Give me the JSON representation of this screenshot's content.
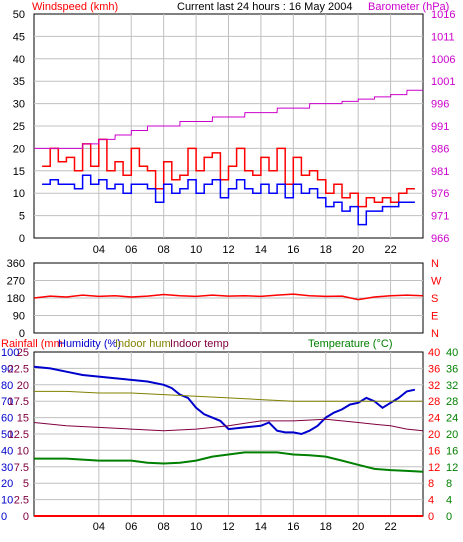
{
  "colors": {
    "wind_gust": "#ff0000",
    "wind_avg": "#0000ff",
    "barometer": "#cc00cc",
    "wind_dir": "#ff0000",
    "rainfall": "#ff0000",
    "humidity": "#0000cc",
    "indoor_hum": "#808000",
    "indoor_temp": "#800040",
    "temperature": "#008000",
    "grid": "#c0c0c0",
    "axis": "#000000"
  },
  "chart_data": [
    {
      "type": "line",
      "title": "Current last 24 hours : 16 May 2004",
      "ylabel": "Windspeed (kmh)",
      "y2label": "Barometer (hPa)",
      "ylim": [
        0,
        50
      ],
      "y_ticks": [
        "0",
        "5",
        "10",
        "15",
        "20",
        "25",
        "30",
        "35",
        "40",
        "45",
        "50"
      ],
      "y2lim": [
        966,
        1016
      ],
      "y2_ticks": [
        "966",
        "971",
        "976",
        "981",
        "986",
        "991",
        "996",
        "1001",
        "1006",
        "1011",
        "1016"
      ],
      "x_ticks": [
        "04",
        "06",
        "08",
        "10",
        "12",
        "14",
        "16",
        "18",
        "20",
        "22"
      ],
      "x_tick_hours": [
        4,
        6,
        8,
        10,
        12,
        14,
        16,
        18,
        20,
        22
      ],
      "xlim": [
        0,
        24
      ],
      "grid": true,
      "series": [
        {
          "key": "gust",
          "axis": "left",
          "hours": [
            0.5,
            1,
            1.5,
            2,
            2.5,
            3,
            3.5,
            4,
            4.5,
            5,
            5.5,
            6,
            6.5,
            7,
            7.5,
            8,
            8.5,
            9,
            9.5,
            10,
            10.5,
            11,
            11.5,
            12,
            12.5,
            13,
            13.5,
            14,
            14.5,
            15,
            15.5,
            16,
            16.5,
            17,
            17.5,
            18,
            18.5,
            19,
            19.5,
            20,
            20.5,
            21,
            21.5,
            22,
            22.5,
            23,
            23.5
          ],
          "values": [
            16,
            20,
            17,
            18,
            15,
            21,
            16,
            22,
            15,
            17,
            14,
            20,
            16,
            15,
            11,
            17,
            13,
            14,
            20,
            15,
            18,
            19,
            13,
            16,
            20,
            15,
            14,
            18,
            15,
            20,
            12,
            18,
            14,
            15,
            13,
            10,
            12,
            9,
            10,
            7,
            9,
            8,
            9,
            8,
            10,
            11,
            11
          ]
        },
        {
          "key": "avg",
          "axis": "left",
          "hours": [
            0.5,
            1,
            1.5,
            2,
            2.5,
            3,
            3.5,
            4,
            4.5,
            5,
            5.5,
            6,
            6.5,
            7,
            7.5,
            8,
            8.5,
            9,
            9.5,
            10,
            10.5,
            11,
            11.5,
            12,
            12.5,
            13,
            13.5,
            14,
            14.5,
            15,
            15.5,
            16,
            16.5,
            17,
            17.5,
            18,
            18.5,
            19,
            19.5,
            20,
            20.5,
            21,
            21.5,
            22,
            22.5,
            23,
            23.5
          ],
          "values": [
            12,
            13,
            12,
            12,
            11,
            14,
            12,
            13,
            11,
            12,
            10,
            12,
            12,
            11,
            8,
            12,
            10,
            11,
            13,
            10,
            12,
            13,
            9,
            11,
            13,
            11,
            10,
            12,
            10,
            12,
            9,
            12,
            10,
            11,
            9,
            7,
            8,
            6,
            7,
            3,
            6,
            6,
            7,
            7,
            8,
            8,
            8
          ]
        },
        {
          "key": "baro",
          "axis": "right",
          "hours": [
            0,
            3,
            3.01,
            4,
            4.01,
            5,
            5.01,
            6,
            6.01,
            7,
            7.01,
            9,
            9.01,
            11,
            11.01,
            13,
            13.01,
            15,
            15.01,
            17,
            17.01,
            19,
            19.01,
            20,
            20.01,
            21,
            21.01,
            22,
            22.01,
            23,
            23.01,
            24
          ],
          "values": [
            986,
            986,
            987,
            987,
            988,
            988,
            989,
            989,
            990,
            990,
            991,
            991,
            992,
            992,
            993,
            993,
            994,
            994,
            995,
            995,
            996,
            996,
            996.5,
            996.5,
            997,
            997,
            997.5,
            997.5,
            998,
            998,
            999,
            999
          ]
        }
      ]
    },
    {
      "type": "line",
      "ylabel": "",
      "ylim": [
        0,
        360
      ],
      "y_ticks": [
        "0",
        "90",
        "180",
        "270",
        "360"
      ],
      "y2_ticks": [
        "N",
        "E",
        "S",
        "W",
        "N"
      ],
      "xlim": [
        0,
        24
      ],
      "grid": true,
      "series": [
        {
          "key": "dir",
          "hours": [
            0,
            1,
            2,
            3,
            4,
            5,
            6,
            7,
            8,
            9,
            10,
            11,
            12,
            13,
            14,
            15,
            16,
            17,
            18,
            19,
            20,
            21,
            22,
            23,
            24
          ],
          "values": [
            180,
            190,
            185,
            195,
            188,
            192,
            185,
            190,
            198,
            192,
            188,
            195,
            190,
            192,
            188,
            195,
            200,
            192,
            188,
            190,
            172,
            185,
            192,
            195,
            192
          ]
        }
      ]
    },
    {
      "type": "line",
      "legend": [
        "Rainfall (mm",
        "Humidity (%)",
        "Indoor hum",
        "Indoor temp",
        "Temperature (°C)"
      ],
      "ylim": [
        0,
        100
      ],
      "y_ticks": [
        "0",
        "10",
        "20",
        "30",
        "40",
        "50",
        "60",
        "70",
        "80",
        "90",
        "100"
      ],
      "y_ticks_mid": [
        "0",
        "2.5",
        "5",
        "7.5",
        "10",
        "12.5",
        "15",
        "17.5",
        "20",
        "22.5",
        "25"
      ],
      "y2lim": [
        0,
        40
      ],
      "y2_ticks_inner": [
        "0",
        "4",
        "8",
        "12",
        "16",
        "20",
        "24",
        "28",
        "32",
        "36",
        "40"
      ],
      "y2_ticks_outer": [
        "0",
        "4",
        "8",
        "12",
        "16",
        "20",
        "24",
        "28",
        "32",
        "36",
        "40"
      ],
      "xlim": [
        0,
        24
      ],
      "grid": true,
      "series": [
        {
          "key": "humidity",
          "axis": "left",
          "hours": [
            0,
            1,
            2,
            3,
            4,
            5,
            6,
            7,
            8,
            8.5,
            9,
            9.5,
            10,
            10.5,
            11,
            11.5,
            12,
            13,
            14,
            14.5,
            15,
            15.5,
            16,
            16.5,
            17,
            17.5,
            18,
            18.5,
            19,
            19.5,
            20,
            20.5,
            21,
            21.5,
            22,
            22.5,
            23,
            23.5
          ],
          "values": [
            91,
            90,
            88,
            86,
            85,
            84,
            83,
            82,
            80,
            78,
            74,
            72,
            66,
            62,
            60,
            58,
            53,
            54,
            55,
            57,
            52,
            51,
            51,
            50,
            52,
            55,
            60,
            63,
            65,
            68,
            69,
            72,
            70,
            66,
            69,
            72,
            76,
            77
          ]
        },
        {
          "key": "indoor_hum",
          "axis": "left",
          "hours": [
            0,
            2,
            4,
            6,
            8,
            10,
            12,
            14,
            16,
            18,
            20,
            22,
            24
          ],
          "values": [
            76,
            76,
            75,
            75,
            74,
            73,
            72,
            71,
            70,
            70,
            70,
            70,
            70
          ]
        },
        {
          "key": "indoor_temp",
          "axis": "left",
          "hours": [
            0,
            2,
            4,
            6,
            8,
            10,
            12,
            14,
            16,
            18,
            20,
            21,
            22,
            23,
            24
          ],
          "values": [
            57,
            55,
            54,
            53,
            52,
            53,
            55,
            58,
            58,
            59,
            57,
            56,
            55,
            53,
            52
          ]
        },
        {
          "key": "temperature",
          "axis": "right",
          "hours": [
            0,
            2,
            4,
            6,
            7,
            8,
            9,
            10,
            11,
            12,
            13,
            14,
            15,
            16,
            17,
            18,
            19,
            20,
            21,
            22,
            23,
            24
          ],
          "values": [
            14,
            14,
            13.5,
            13.5,
            13,
            12.8,
            13,
            13.5,
            14.5,
            15,
            15.5,
            15.5,
            15.5,
            15,
            14.8,
            14.5,
            13.5,
            12.5,
            11.5,
            11.2,
            11,
            10.8
          ]
        },
        {
          "key": "rain",
          "axis": "left",
          "hours": [
            0,
            24
          ],
          "values": [
            0,
            0
          ]
        }
      ]
    }
  ]
}
